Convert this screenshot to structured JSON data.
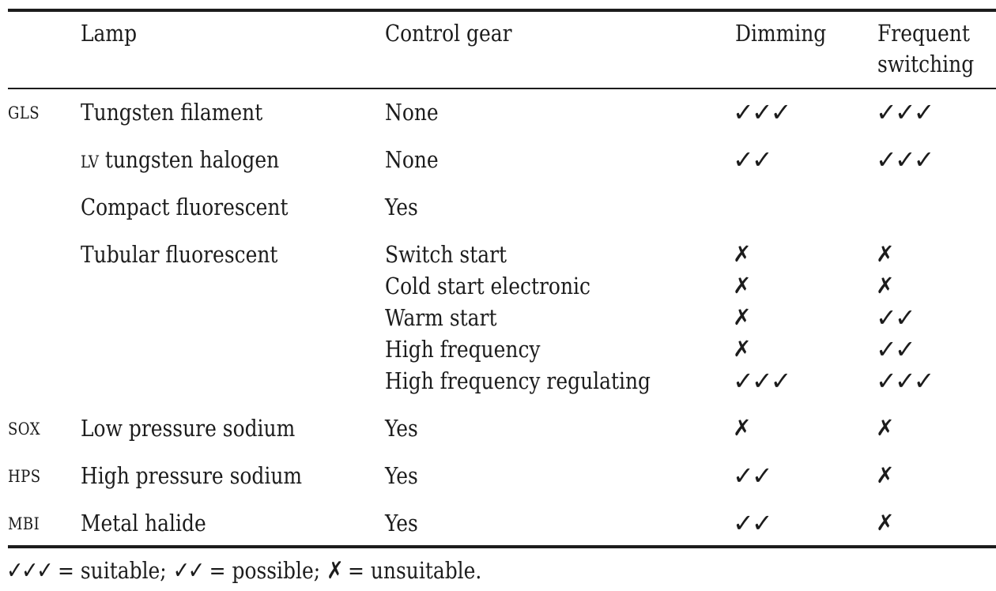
{
  "header": {
    "lamp": "Lamp",
    "control_gear": "Control gear",
    "dimming": "Dimming",
    "switching_line1": "Frequent",
    "switching_line2": "switching"
  },
  "rows": [
    {
      "abbr": "GLS",
      "lamp_prefix": "",
      "lamp": "Tungsten filament",
      "gear": "None",
      "dimming": "✓✓✓",
      "switching": "✓✓✓"
    },
    {
      "abbr": "",
      "lamp_prefix": "LV",
      "lamp": " tungsten halogen",
      "gear": "None",
      "dimming": "✓✓",
      "switching": "✓✓✓"
    },
    {
      "abbr": "",
      "lamp_prefix": "",
      "lamp": "Compact fluorescent",
      "gear": "Yes",
      "dimming": "",
      "switching": ""
    },
    {
      "abbr": "",
      "lamp_prefix": "",
      "lamp": "Tubular fluorescent",
      "gear": "Switch start",
      "dimming": "✗",
      "switching": "✗"
    },
    {
      "abbr": "",
      "lamp_prefix": "",
      "lamp": "",
      "gear": "Cold start electronic",
      "dimming": "✗",
      "switching": "✗"
    },
    {
      "abbr": "",
      "lamp_prefix": "",
      "lamp": "",
      "gear": "Warm start",
      "dimming": "✗",
      "switching": "✓✓"
    },
    {
      "abbr": "",
      "lamp_prefix": "",
      "lamp": "",
      "gear": "High frequency",
      "dimming": "✗",
      "switching": "✓✓"
    },
    {
      "abbr": "",
      "lamp_prefix": "",
      "lamp": "",
      "gear": "High frequency regulating",
      "dimming": "✓✓✓",
      "switching": "✓✓✓"
    },
    {
      "abbr": "SOX",
      "lamp_prefix": "",
      "lamp": "Low pressure sodium",
      "gear": "Yes",
      "dimming": "✗",
      "switching": "✗"
    },
    {
      "abbr": "HPS",
      "lamp_prefix": "",
      "lamp": "High pressure sodium",
      "gear": "Yes",
      "dimming": "✓✓",
      "switching": "✗"
    },
    {
      "abbr": "MBI",
      "lamp_prefix": "",
      "lamp": "Metal halide",
      "gear": "Yes",
      "dimming": "✓✓",
      "switching": "✗"
    }
  ],
  "footnote": {
    "suitable_symbol": "✓✓✓",
    "suitable_text": " = suitable; ",
    "possible_symbol": "✓✓",
    "possible_text": " = possible; ",
    "unsuitable_symbol": "✗",
    "unsuitable_text": " = unsuitable."
  }
}
